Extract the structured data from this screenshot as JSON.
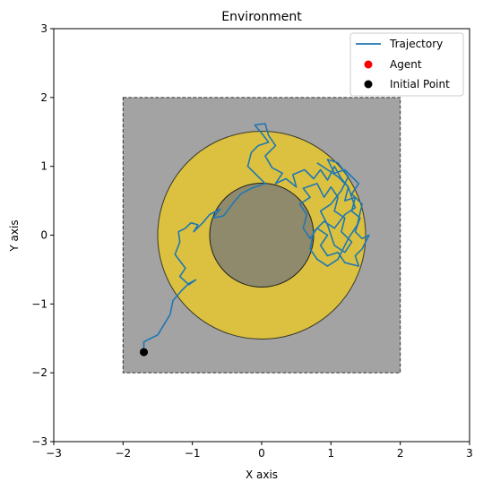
{
  "chart_data": {
    "type": "line",
    "title": "Environment",
    "xlabel": "X axis",
    "ylabel": "Y axis",
    "xlim": [
      -3,
      3
    ],
    "ylim": [
      -3,
      3
    ],
    "xticks": [
      -3,
      -2,
      -1,
      0,
      1,
      2,
      3
    ],
    "yticks": [
      -3,
      -2,
      -1,
      0,
      1,
      2,
      3
    ],
    "xtick_labels": [
      "−3",
      "−2",
      "−1",
      "0",
      "1",
      "2",
      "3"
    ],
    "ytick_labels": [
      "−3",
      "−2",
      "−1",
      "0",
      "1",
      "2",
      "3"
    ],
    "grid": false,
    "legend_position": "top-right",
    "regions": {
      "boundary_square": {
        "x": [
          -2,
          2
        ],
        "y": [
          -2,
          2
        ],
        "color": "#a3a3a3"
      },
      "ring": {
        "center": [
          0,
          0
        ],
        "outer_radius": 1.5,
        "inner_radius": 0.75,
        "color": "#dbc13f"
      },
      "inner_disk": {
        "center": [
          0,
          0
        ],
        "radius": 0.75,
        "color": "#8f8a6c"
      }
    },
    "series": [
      {
        "name": "Trajectory",
        "color": "#1f77b4",
        "points": [
          [
            -1.7,
            -1.7
          ],
          [
            -1.7,
            -1.55
          ],
          [
            -1.5,
            -1.45
          ],
          [
            -1.32,
            -1.15
          ],
          [
            -1.28,
            -0.95
          ],
          [
            -1.15,
            -0.8
          ],
          [
            -1.05,
            -0.7
          ],
          [
            -0.95,
            -0.65
          ],
          [
            -1.05,
            -0.72
          ],
          [
            -1.18,
            -0.6
          ],
          [
            -1.1,
            -0.48
          ],
          [
            -1.25,
            -0.28
          ],
          [
            -1.18,
            -0.1
          ],
          [
            -1.2,
            0.05
          ],
          [
            -1.1,
            0.1
          ],
          [
            -1.02,
            0.18
          ],
          [
            -0.92,
            0.15
          ],
          [
            -0.98,
            0.05
          ],
          [
            -0.85,
            0.18
          ],
          [
            -0.75,
            0.3
          ],
          [
            -0.6,
            0.38
          ],
          [
            -0.7,
            0.25
          ],
          [
            -0.55,
            0.28
          ],
          [
            -0.4,
            0.48
          ],
          [
            -0.3,
            0.6
          ],
          [
            -0.15,
            0.68
          ],
          [
            0.05,
            0.75
          ],
          [
            -0.1,
            0.9
          ],
          [
            -0.2,
            1.0
          ],
          [
            -0.15,
            1.2
          ],
          [
            -0.05,
            1.3
          ],
          [
            0.1,
            1.35
          ],
          [
            0.0,
            1.48
          ],
          [
            -0.1,
            1.6
          ],
          [
            0.05,
            1.62
          ],
          [
            0.1,
            1.45
          ],
          [
            0.2,
            1.3
          ],
          [
            0.05,
            1.15
          ],
          [
            0.15,
            0.98
          ],
          [
            0.3,
            0.9
          ],
          [
            0.2,
            0.75
          ],
          [
            0.35,
            0.82
          ],
          [
            0.5,
            0.7
          ],
          [
            0.45,
            0.88
          ],
          [
            0.62,
            0.95
          ],
          [
            0.75,
            0.82
          ],
          [
            0.85,
            0.95
          ],
          [
            0.95,
            0.8
          ],
          [
            1.05,
            1.0
          ],
          [
            1.15,
            0.82
          ],
          [
            1.25,
            0.7
          ],
          [
            1.2,
            0.5
          ],
          [
            1.35,
            0.55
          ],
          [
            1.3,
            0.35
          ],
          [
            1.42,
            0.25
          ],
          [
            1.35,
            0.05
          ],
          [
            1.45,
            -0.05
          ],
          [
            1.55,
            0.0
          ],
          [
            1.45,
            -0.2
          ],
          [
            1.35,
            -0.3
          ],
          [
            1.4,
            -0.45
          ],
          [
            1.2,
            -0.4
          ],
          [
            1.1,
            -0.25
          ],
          [
            0.95,
            -0.3
          ],
          [
            0.85,
            -0.15
          ],
          [
            0.95,
            0.0
          ],
          [
            0.8,
            0.1
          ],
          [
            0.7,
            -0.05
          ],
          [
            0.6,
            0.1
          ],
          [
            0.65,
            0.3
          ],
          [
            0.55,
            0.45
          ],
          [
            0.7,
            0.55
          ],
          [
            0.6,
            0.68
          ],
          [
            0.8,
            0.75
          ],
          [
            0.9,
            0.55
          ],
          [
            1.0,
            0.7
          ],
          [
            1.1,
            0.55
          ],
          [
            1.05,
            0.35
          ],
          [
            1.2,
            0.25
          ],
          [
            1.15,
            0.05
          ],
          [
            1.3,
            -0.1
          ],
          [
            1.2,
            -0.25
          ],
          [
            1.05,
            -0.15
          ],
          [
            0.95,
            0.15
          ],
          [
            0.85,
            0.35
          ],
          [
            1.0,
            0.45
          ],
          [
            1.15,
            0.65
          ],
          [
            1.25,
            0.85
          ],
          [
            1.1,
            1.05
          ],
          [
            0.95,
            1.1
          ],
          [
            1.05,
            0.9
          ],
          [
            1.2,
            0.95
          ],
          [
            1.4,
            0.75
          ],
          [
            1.3,
            0.6
          ],
          [
            1.45,
            0.45
          ],
          [
            1.38,
            0.15
          ],
          [
            1.25,
            -0.05
          ],
          [
            1.1,
            -0.35
          ],
          [
            0.95,
            -0.45
          ],
          [
            0.8,
            -0.35
          ],
          [
            0.7,
            -0.2
          ],
          [
            0.75,
            0.05
          ],
          [
            0.9,
            0.2
          ],
          [
            1.05,
            0.1
          ],
          [
            1.2,
            0.3
          ],
          [
            1.35,
            0.4
          ],
          [
            1.25,
            0.7
          ],
          [
            1.1,
            0.85
          ],
          [
            0.95,
            0.95
          ],
          [
            0.8,
            1.05
          ]
        ]
      }
    ],
    "agent": {
      "name": "Agent",
      "color": "#ff0000"
    },
    "initial_point": {
      "name": "Initial Point",
      "color": "#000000",
      "x": -1.7,
      "y": -1.7
    },
    "legend": [
      "Trajectory",
      "Agent",
      "Initial Point"
    ]
  }
}
